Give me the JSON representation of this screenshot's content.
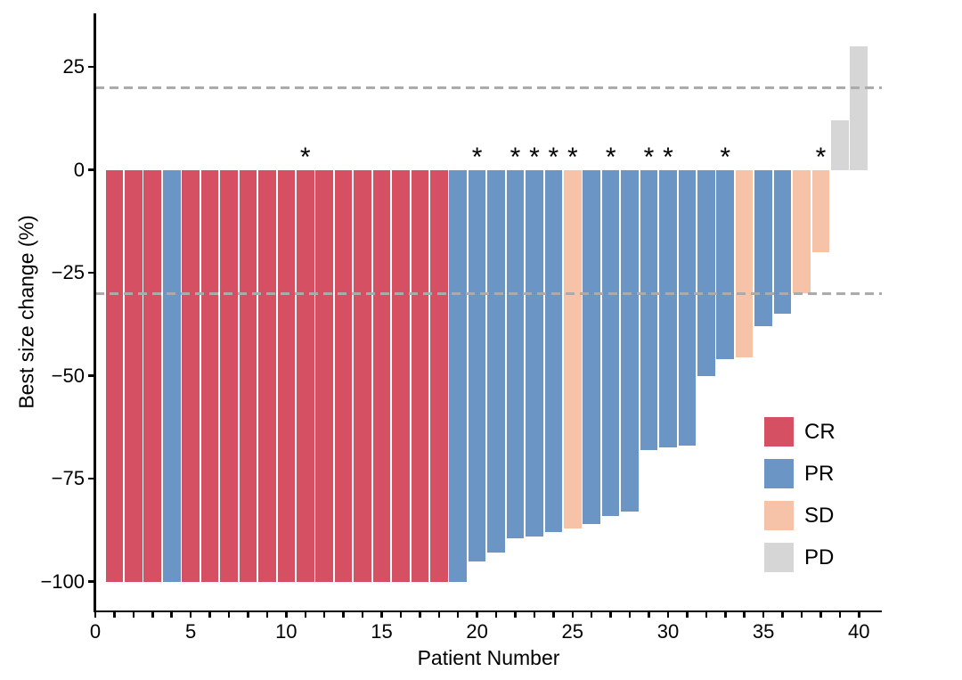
{
  "figure": {
    "y_axis_title": "Best size change (%)",
    "x_axis_title": "Patient Number"
  },
  "colors": {
    "CR": "#d65064",
    "PR": "#6b95c4",
    "SD": "#f6c3a8",
    "PD": "#d6d6d6",
    "reference_line": "#ababab",
    "axis": "#000000",
    "asterisk": "#000000"
  },
  "chart_data": {
    "type": "bar",
    "subtype": "waterfall",
    "title": "",
    "xlabel": "Patient Number",
    "ylabel": "Best size change (%)",
    "xlim": [
      0,
      41.2
    ],
    "ylim": [
      -107,
      38
    ],
    "x_tick_every": 1,
    "x_tick_labels": [
      0,
      5,
      10,
      15,
      20,
      25,
      30,
      35,
      40
    ],
    "y_ticks": [
      25,
      0,
      -25,
      -50,
      -75,
      -100
    ],
    "y_tick_labels": [
      "25",
      "0",
      "−25",
      "−50",
      "−75",
      "−100"
    ],
    "reference_lines": [
      20,
      -30
    ],
    "grid": false,
    "legend_position": "inside-right",
    "legend": [
      {
        "label": "CR",
        "response": "CR"
      },
      {
        "label": "PR",
        "response": "PR"
      },
      {
        "label": "SD",
        "response": "SD"
      },
      {
        "label": "PD",
        "response": "PD"
      }
    ],
    "asterisk_symbol": "*",
    "patients": [
      {
        "n": 1,
        "value": -100,
        "response": "CR",
        "asterisk": false
      },
      {
        "n": 2,
        "value": -100,
        "response": "CR",
        "asterisk": false
      },
      {
        "n": 3,
        "value": -100,
        "response": "CR",
        "asterisk": false
      },
      {
        "n": 4,
        "value": -100,
        "response": "PR",
        "asterisk": false
      },
      {
        "n": 5,
        "value": -100,
        "response": "CR",
        "asterisk": false
      },
      {
        "n": 6,
        "value": -100,
        "response": "CR",
        "asterisk": false
      },
      {
        "n": 7,
        "value": -100,
        "response": "CR",
        "asterisk": false
      },
      {
        "n": 8,
        "value": -100,
        "response": "CR",
        "asterisk": false
      },
      {
        "n": 9,
        "value": -100,
        "response": "CR",
        "asterisk": false
      },
      {
        "n": 10,
        "value": -100,
        "response": "CR",
        "asterisk": false
      },
      {
        "n": 11,
        "value": -100,
        "response": "CR",
        "asterisk": true
      },
      {
        "n": 12,
        "value": -100,
        "response": "CR",
        "asterisk": false
      },
      {
        "n": 13,
        "value": -100,
        "response": "CR",
        "asterisk": false
      },
      {
        "n": 14,
        "value": -100,
        "response": "CR",
        "asterisk": false
      },
      {
        "n": 15,
        "value": -100,
        "response": "CR",
        "asterisk": false
      },
      {
        "n": 16,
        "value": -100,
        "response": "CR",
        "asterisk": false
      },
      {
        "n": 17,
        "value": -100,
        "response": "CR",
        "asterisk": false
      },
      {
        "n": 18,
        "value": -100,
        "response": "CR",
        "asterisk": false
      },
      {
        "n": 19,
        "value": -100,
        "response": "PR",
        "asterisk": false
      },
      {
        "n": 20,
        "value": -95,
        "response": "PR",
        "asterisk": true
      },
      {
        "n": 21,
        "value": -93,
        "response": "PR",
        "asterisk": false
      },
      {
        "n": 22,
        "value": -89.5,
        "response": "PR",
        "asterisk": true
      },
      {
        "n": 23,
        "value": -89,
        "response": "PR",
        "asterisk": true
      },
      {
        "n": 24,
        "value": -88,
        "response": "PR",
        "asterisk": true
      },
      {
        "n": 25,
        "value": -87,
        "response": "SD",
        "asterisk": true
      },
      {
        "n": 26,
        "value": -86,
        "response": "PR",
        "asterisk": false
      },
      {
        "n": 27,
        "value": -84,
        "response": "PR",
        "asterisk": true
      },
      {
        "n": 28,
        "value": -83,
        "response": "PR",
        "asterisk": false
      },
      {
        "n": 29,
        "value": -68,
        "response": "PR",
        "asterisk": true
      },
      {
        "n": 30,
        "value": -67.5,
        "response": "PR",
        "asterisk": true
      },
      {
        "n": 31,
        "value": -67,
        "response": "PR",
        "asterisk": false
      },
      {
        "n": 32,
        "value": -50,
        "response": "PR",
        "asterisk": false
      },
      {
        "n": 33,
        "value": -46,
        "response": "PR",
        "asterisk": true
      },
      {
        "n": 34,
        "value": -45.5,
        "response": "SD",
        "asterisk": false
      },
      {
        "n": 35,
        "value": -38,
        "response": "PR",
        "asterisk": false
      },
      {
        "n": 36,
        "value": -35,
        "response": "PR",
        "asterisk": false
      },
      {
        "n": 37,
        "value": -30,
        "response": "SD",
        "asterisk": false
      },
      {
        "n": 38,
        "value": -20,
        "response": "SD",
        "asterisk": true
      },
      {
        "n": 39,
        "value": 12,
        "response": "PD",
        "asterisk": false
      },
      {
        "n": 40,
        "value": 30,
        "response": "PD",
        "asterisk": false
      }
    ]
  }
}
